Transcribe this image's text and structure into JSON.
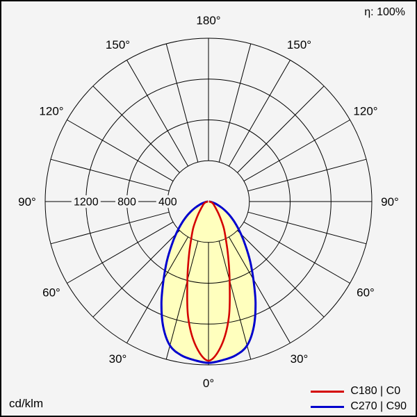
{
  "page": {
    "background": "#f4f4f4",
    "frame_color": "#000000"
  },
  "header": {
    "efficiency": "η: 100%"
  },
  "footer": {
    "unit": "cd/klm"
  },
  "legend": {
    "items": [
      {
        "label": "C180 | C0",
        "color": "#d40000"
      },
      {
        "label": "C270 | C90",
        "color": "#0000cd"
      }
    ]
  },
  "chart_data": {
    "type": "polar-luminous-intensity",
    "title": "Luminous intensity distribution curve",
    "unit": "cd/klm",
    "efficiency_percent": 100,
    "grid": true,
    "spoke_step_deg": 15,
    "radial_tick_values": [
      400,
      800,
      1200
    ],
    "radial_axis_max": 1600,
    "angle_labels": [
      {
        "deg": 0,
        "label": "0°"
      },
      {
        "deg": 30,
        "label": "30°"
      },
      {
        "deg": 60,
        "label": "60°"
      },
      {
        "deg": 90,
        "label": "90°"
      },
      {
        "deg": 120,
        "label": "120°"
      },
      {
        "deg": 150,
        "label": "150°"
      },
      {
        "deg": 180,
        "label": "180°"
      }
    ],
    "gamma_deg": [
      0,
      5,
      10,
      15,
      20,
      25,
      30,
      35,
      40,
      45,
      50,
      55,
      60,
      65,
      70,
      75,
      80,
      85,
      90
    ],
    "series": [
      {
        "name": "C180 | C0",
        "plane": "C0-C180",
        "color": "#d40000",
        "stroke_width": 2.6,
        "values_cd_per_klm": [
          1560,
          1420,
          1150,
          800,
          560,
          400,
          300,
          210,
          150,
          110,
          85,
          70,
          60,
          50,
          40,
          30,
          20,
          10,
          5
        ]
      },
      {
        "name": "C270 | C90",
        "plane": "C90-C270",
        "color": "#0000cd",
        "stroke_width": 3,
        "values_cd_per_klm": [
          1580,
          1560,
          1530,
          1460,
          1300,
          1090,
          880,
          710,
          565,
          450,
          355,
          275,
          205,
          145,
          95,
          60,
          32,
          15,
          6
        ]
      }
    ],
    "fill_color": "#ffffbe",
    "legend_position": "bottom-right"
  }
}
